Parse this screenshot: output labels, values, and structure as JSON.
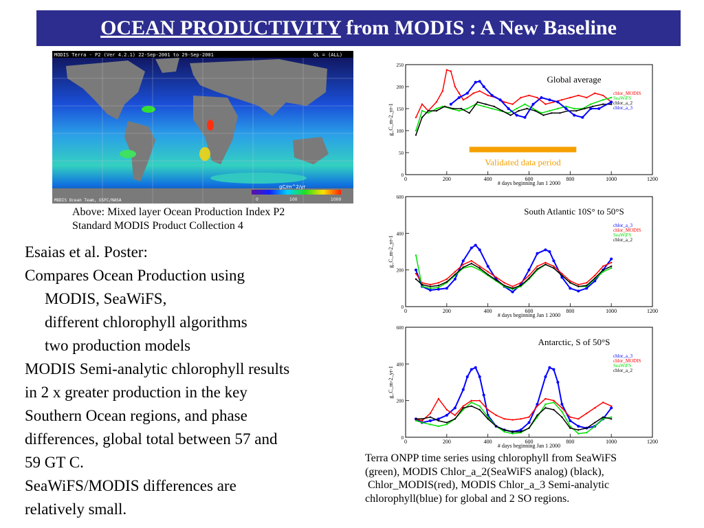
{
  "slide": {
    "title_main": "OCEAN PRODUCTIVITY",
    "title_rest": " from MODIS : A New Baseline"
  },
  "map": {
    "header_left": "MODIS Terra - P2  (Ver 4.2.1)  22-Sep-2001 to 29-Sep-2001",
    "header_right": "QL = (ALL)",
    "footer_left": "MODIS Ocean Team, GSFC/NASA",
    "scale_label": "gC/m^2/yr",
    "scale_ticks": [
      "0",
      "100",
      "1000"
    ],
    "caption_lines": [
      "Above: Mixed layer Ocean Production Index P2",
      "Standard MODIS Product Collection 4"
    ]
  },
  "body": {
    "lines": [
      {
        "text": "Esaias et al. Poster:",
        "indent": false
      },
      {
        "text": "Compares Ocean Production using",
        "indent": false
      },
      {
        "text": "MODIS, SeaWiFS,",
        "indent": true
      },
      {
        "text": "different chlorophyll algorithms",
        "indent": true
      },
      {
        "text": "two production models",
        "indent": true
      },
      {
        "text": "MODIS Semi-analytic chlorophyll results",
        "indent": false
      },
      {
        "text": "in 2 x greater production in the key",
        "indent": false
      },
      {
        "text": "Southern Ocean regions, and phase",
        "indent": false
      },
      {
        "text": "differences, global total between 57 and",
        "indent": false
      },
      {
        "text": "59 GT C.",
        "indent": false
      },
      {
        "text": "SeaWiFS/MODIS differences are",
        "indent": false
      },
      {
        "text": "relatively small.",
        "indent": false
      }
    ]
  },
  "colors": {
    "banner": "#2d2d8f",
    "modis": "#ff0000",
    "seawifs": "#00dd00",
    "chlor_a_2": "#000000",
    "chlor_a_3": "#0000ff",
    "validated_bar": "#f5a000"
  },
  "chart_data": [
    {
      "type": "line",
      "title": "Global average",
      "xlabel": "# days beginning Jan 1 2000",
      "ylabel": "g_C_m-2_yr-1",
      "xlim": [
        0,
        1200
      ],
      "ylim": [
        0,
        250
      ],
      "xticks": [
        "0",
        "200",
        "400",
        "600",
        "800",
        "1000",
        "1200"
      ],
      "yticks": [
        "0",
        "50",
        "100",
        "150",
        "200",
        "250"
      ],
      "annotation": "Validated data period",
      "validated_period": [
        310,
        830
      ],
      "validated_value": 57,
      "series": [
        {
          "name": "chlor_MODIS",
          "color": "red",
          "x": [
            50,
            80,
            110,
            150,
            180,
            200,
            220,
            240,
            260,
            280,
            300,
            330,
            360,
            400,
            440,
            480,
            520,
            560,
            600,
            640,
            680,
            720,
            760,
            800,
            840,
            880,
            920,
            960,
            1000
          ],
          "y": [
            130,
            160,
            145,
            165,
            190,
            238,
            235,
            200,
            185,
            170,
            175,
            185,
            190,
            180,
            175,
            165,
            160,
            175,
            180,
            175,
            160,
            165,
            170,
            175,
            180,
            175,
            185,
            180,
            165
          ]
        },
        {
          "name": "SeaWiFS",
          "color": "green",
          "x": [
            50,
            80,
            110,
            150,
            180,
            220,
            260,
            300,
            340,
            380,
            420,
            460,
            500,
            540,
            580,
            620,
            660,
            700,
            740,
            780,
            820,
            860,
            900,
            960,
            1000
          ],
          "y": [
            100,
            145,
            140,
            150,
            155,
            150,
            145,
            150,
            160,
            155,
            150,
            145,
            140,
            150,
            160,
            150,
            140,
            145,
            150,
            155,
            150,
            150,
            160,
            170,
            175
          ]
        },
        {
          "name": "chlor_a_2",
          "color": "black",
          "x": [
            50,
            80,
            110,
            150,
            190,
            230,
            270,
            310,
            350,
            390,
            430,
            470,
            510,
            550,
            590,
            630,
            670,
            710,
            750,
            790,
            830,
            870,
            910,
            960,
            1000
          ],
          "y": [
            90,
            130,
            145,
            145,
            155,
            150,
            150,
            140,
            165,
            160,
            155,
            145,
            135,
            145,
            150,
            145,
            135,
            140,
            140,
            145,
            145,
            150,
            155,
            160,
            160
          ]
        },
        {
          "name": "chlor_a_3",
          "color": "blue",
          "x": [
            220,
            260,
            300,
            340,
            360,
            380,
            420,
            460,
            500,
            540,
            580,
            620,
            660,
            700,
            740,
            780,
            820,
            860,
            900,
            940,
            1000
          ],
          "y": [
            160,
            175,
            185,
            210,
            212,
            200,
            180,
            170,
            150,
            135,
            130,
            160,
            175,
            170,
            165,
            150,
            135,
            130,
            150,
            150,
            165
          ]
        }
      ]
    },
    {
      "type": "line",
      "title": "South Atlantic 10S° to 50°S",
      "xlabel": "# days beginning Jan 1 2000",
      "ylabel": "g_C_m-2_yr-1",
      "xlim": [
        0,
        1200
      ],
      "ylim": [
        0,
        600
      ],
      "xticks": [
        "0",
        "200",
        "400",
        "600",
        "800",
        "1000",
        "1200"
      ],
      "yticks": [
        "0",
        "200",
        "400",
        "600"
      ],
      "series": [
        {
          "name": "chlor_a_3",
          "color": "blue",
          "x": [
            50,
            80,
            120,
            160,
            200,
            240,
            280,
            320,
            340,
            360,
            400,
            440,
            480,
            520,
            560,
            600,
            640,
            680,
            700,
            720,
            760,
            800,
            840,
            880,
            920,
            960,
            1000
          ],
          "y": [
            200,
            110,
            90,
            95,
            100,
            150,
            250,
            320,
            335,
            310,
            220,
            150,
            110,
            80,
            120,
            200,
            290,
            310,
            300,
            250,
            160,
            100,
            85,
            100,
            140,
            200,
            260
          ]
        },
        {
          "name": "chlor_MODIS",
          "color": "red",
          "x": [
            50,
            80,
            120,
            160,
            200,
            240,
            280,
            320,
            360,
            400,
            440,
            480,
            520,
            560,
            600,
            640,
            680,
            720,
            760,
            800,
            840,
            880,
            920,
            960,
            1000
          ],
          "y": [
            180,
            130,
            120,
            130,
            150,
            190,
            230,
            250,
            220,
            190,
            160,
            130,
            110,
            130,
            170,
            220,
            240,
            220,
            180,
            140,
            120,
            130,
            170,
            220,
            240
          ]
        },
        {
          "name": "SeaWiFS",
          "color": "green",
          "x": [
            50,
            80,
            120,
            160,
            200,
            240,
            280,
            320,
            360,
            400,
            440,
            480,
            520,
            560,
            600,
            640,
            680,
            720,
            760,
            800,
            840,
            880,
            920,
            960,
            1000
          ],
          "y": [
            280,
            110,
            100,
            105,
            130,
            170,
            210,
            220,
            200,
            170,
            140,
            110,
            95,
            110,
            150,
            200,
            230,
            210,
            170,
            130,
            110,
            110,
            150,
            190,
            210
          ]
        },
        {
          "name": "chlor_a_2",
          "color": "black",
          "x": [
            50,
            80,
            120,
            160,
            200,
            240,
            280,
            320,
            360,
            400,
            440,
            480,
            520,
            560,
            600,
            640,
            680,
            720,
            760,
            800,
            840,
            880,
            920,
            960,
            1000
          ],
          "y": [
            150,
            120,
            110,
            115,
            135,
            175,
            215,
            235,
            210,
            175,
            145,
            115,
            100,
            115,
            155,
            205,
            230,
            210,
            170,
            130,
            110,
            115,
            155,
            200,
            220
          ]
        }
      ]
    },
    {
      "type": "line",
      "title": "Antarctic, S of 50°S",
      "xlabel": "# days beginning Jan 1 2000",
      "ylabel": "g_C_m-2_yr-1",
      "xlim": [
        0,
        1200
      ],
      "ylim": [
        0,
        600
      ],
      "xticks": [
        "0",
        "200",
        "400",
        "600",
        "800",
        "1000",
        "1200"
      ],
      "yticks": [
        "0",
        "200",
        "400",
        "600"
      ],
      "series": [
        {
          "name": "chlor_a_3",
          "color": "blue",
          "x": [
            50,
            80,
            120,
            160,
            200,
            240,
            280,
            300,
            320,
            340,
            360,
            380,
            400,
            440,
            480,
            520,
            560,
            600,
            640,
            680,
            700,
            720,
            740,
            760,
            800,
            840,
            880,
            920,
            960,
            1000
          ],
          "y": [
            100,
            80,
            90,
            100,
            120,
            160,
            260,
            330,
            370,
            380,
            330,
            230,
            120,
            60,
            40,
            30,
            40,
            80,
            180,
            330,
            380,
            370,
            300,
            180,
            90,
            60,
            50,
            60,
            100,
            160
          ]
        },
        {
          "name": "chlor_MODIS",
          "color": "red",
          "x": [
            50,
            80,
            120,
            160,
            200,
            240,
            280,
            320,
            360,
            400,
            440,
            480,
            520,
            560,
            600,
            640,
            680,
            720,
            760,
            800,
            840,
            880,
            920,
            960,
            1000
          ],
          "y": [
            100,
            90,
            130,
            210,
            150,
            120,
            170,
            200,
            200,
            150,
            120,
            100,
            95,
            100,
            110,
            170,
            210,
            200,
            160,
            110,
            100,
            130,
            160,
            190,
            170
          ]
        },
        {
          "name": "SeaWiFS",
          "color": "green",
          "x": [
            50,
            80,
            120,
            160,
            200,
            240,
            280,
            320,
            360,
            400,
            440,
            480,
            520,
            560,
            600,
            640,
            680,
            720,
            760,
            800,
            840,
            880,
            920,
            960,
            1000
          ],
          "y": [
            90,
            80,
            70,
            60,
            70,
            100,
            150,
            190,
            170,
            110,
            60,
            30,
            20,
            25,
            50,
            110,
            180,
            190,
            140,
            60,
            20,
            25,
            60,
            100,
            110
          ]
        },
        {
          "name": "chlor_a_2",
          "color": "black",
          "x": [
            50,
            80,
            120,
            160,
            200,
            240,
            280,
            320,
            360,
            400,
            440,
            480,
            520,
            560,
            600,
            640,
            680,
            720,
            760,
            800,
            840,
            880,
            920,
            960,
            1000
          ],
          "y": [
            100,
            100,
            110,
            90,
            80,
            100,
            160,
            170,
            150,
            100,
            60,
            40,
            30,
            30,
            50,
            120,
            160,
            150,
            110,
            50,
            40,
            50,
            80,
            110,
            100
          ]
        }
      ]
    }
  ],
  "bottom_caption": {
    "lines": [
      "Terra ONPP time series using chlorophyll from SeaWiFS",
      "(green), MODIS Chlor_a_2(SeaWiFS analog) (black),",
      " Chlor_MODIS(red), MODIS Chlor_a_3 Semi-analytic",
      "chlorophyll(blue) for global and 2 SO regions."
    ]
  }
}
